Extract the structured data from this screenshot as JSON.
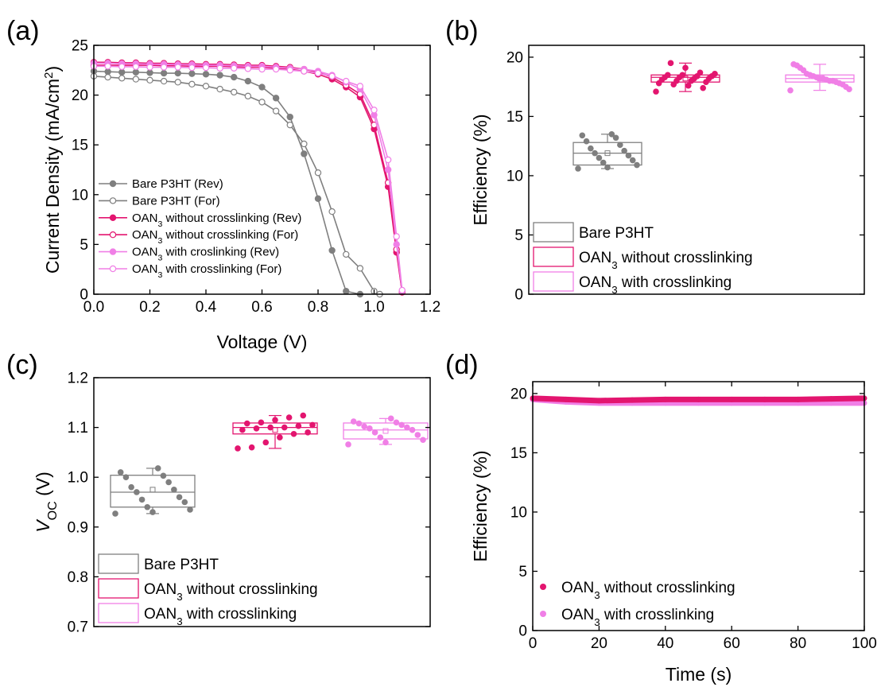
{
  "chart_data": [
    {
      "panel": "(a)",
      "type": "line",
      "xlabel": "Voltage (V)",
      "ylabel": "Current Density (mA/cm²)",
      "xlim": [
        0.0,
        1.2
      ],
      "ylim": [
        0,
        25
      ],
      "xticks": [
        "0.0",
        "0.2",
        "0.4",
        "0.6",
        "0.8",
        "1.0",
        "1.2"
      ],
      "yticks": [
        "0",
        "5",
        "10",
        "15",
        "20",
        "25"
      ],
      "grid": false,
      "legend_position": "bottom-left",
      "series": [
        {
          "name": "Bare P3HT (Rev)",
          "color": "#7f7f7f",
          "marker": "filled",
          "x": [
            0.0,
            0.05,
            0.1,
            0.15,
            0.2,
            0.25,
            0.3,
            0.35,
            0.4,
            0.45,
            0.5,
            0.55,
            0.6,
            0.65,
            0.7,
            0.75,
            0.8,
            0.85,
            0.9,
            0.95
          ],
          "y": [
            22.4,
            22.35,
            22.3,
            22.3,
            22.25,
            22.2,
            22.2,
            22.15,
            22.1,
            22.0,
            21.8,
            21.4,
            20.8,
            19.7,
            17.8,
            14.1,
            9.6,
            4.4,
            0.3,
            0.0
          ]
        },
        {
          "name": "Bare P3HT (For)",
          "color": "#7f7f7f",
          "marker": "open",
          "x": [
            0.0,
            0.05,
            0.1,
            0.15,
            0.2,
            0.25,
            0.3,
            0.35,
            0.4,
            0.45,
            0.5,
            0.55,
            0.6,
            0.65,
            0.7,
            0.75,
            0.8,
            0.85,
            0.9,
            0.95,
            1.0,
            1.02
          ],
          "y": [
            21.9,
            21.8,
            21.7,
            21.6,
            21.5,
            21.4,
            21.3,
            21.1,
            20.9,
            20.6,
            20.3,
            19.9,
            19.3,
            18.4,
            17.0,
            15.1,
            12.2,
            8.3,
            4.0,
            2.6,
            0.3,
            0.0
          ]
        },
        {
          "name": "OAN3 without crosslinking (Rev)",
          "color": "#e3156f",
          "marker": "filled",
          "x": [
            0.0,
            0.05,
            0.1,
            0.15,
            0.2,
            0.25,
            0.3,
            0.35,
            0.4,
            0.45,
            0.5,
            0.55,
            0.6,
            0.65,
            0.7,
            0.75,
            0.8,
            0.85,
            0.9,
            0.95,
            1.0,
            1.05,
            1.08,
            1.1
          ],
          "y": [
            23.0,
            23.0,
            23.0,
            23.0,
            23.0,
            22.95,
            22.95,
            22.9,
            22.9,
            22.9,
            22.85,
            22.8,
            22.8,
            22.7,
            22.6,
            22.4,
            22.1,
            21.6,
            20.8,
            19.8,
            16.6,
            10.8,
            4.2,
            0.2
          ]
        },
        {
          "name": "OAN3 without crosslinking (For)",
          "color": "#e3156f",
          "marker": "open",
          "x": [
            0.0,
            0.05,
            0.1,
            0.15,
            0.2,
            0.25,
            0.3,
            0.35,
            0.4,
            0.45,
            0.5,
            0.55,
            0.6,
            0.65,
            0.7,
            0.75,
            0.8,
            0.85,
            0.9,
            0.95,
            1.0,
            1.05,
            1.08,
            1.1
          ],
          "y": [
            23.3,
            23.3,
            23.25,
            23.25,
            23.2,
            23.2,
            23.15,
            23.15,
            23.1,
            23.1,
            23.05,
            23.0,
            23.0,
            22.9,
            22.8,
            22.6,
            22.3,
            21.8,
            21.0,
            20.1,
            17.0,
            11.2,
            4.5,
            0.2
          ]
        },
        {
          "name": "OAN3 with croslinking (Rev)",
          "color": "#f07fe6",
          "marker": "filled",
          "x": [
            0.0,
            0.05,
            0.1,
            0.15,
            0.2,
            0.25,
            0.3,
            0.35,
            0.4,
            0.45,
            0.5,
            0.55,
            0.6,
            0.65,
            0.7,
            0.75,
            0.8,
            0.85,
            0.9,
            0.95,
            1.0,
            1.05,
            1.08,
            1.1
          ],
          "y": [
            23.2,
            23.2,
            23.15,
            23.15,
            23.1,
            23.1,
            23.05,
            23.05,
            23.0,
            23.0,
            22.95,
            22.9,
            22.9,
            22.8,
            22.7,
            22.6,
            22.4,
            22.0,
            21.3,
            20.6,
            18.0,
            12.5,
            5.0,
            0.3
          ]
        },
        {
          "name": "OAN3 with crosslinking (For)",
          "color": "#f07fe6",
          "marker": "open",
          "x": [
            0.0,
            0.05,
            0.1,
            0.15,
            0.2,
            0.25,
            0.3,
            0.35,
            0.4,
            0.45,
            0.5,
            0.55,
            0.6,
            0.65,
            0.7,
            0.75,
            0.8,
            0.85,
            0.9,
            0.95,
            1.0,
            1.05,
            1.08,
            1.1
          ],
          "y": [
            22.9,
            22.9,
            22.85,
            22.85,
            22.8,
            22.8,
            22.8,
            22.75,
            22.75,
            22.7,
            22.7,
            22.65,
            22.6,
            22.6,
            22.5,
            22.4,
            22.2,
            21.9,
            21.4,
            20.9,
            18.5,
            13.5,
            5.8,
            0.4
          ]
        }
      ]
    },
    {
      "panel": "(b)",
      "type": "box",
      "ylabel": "Efficiency (%)",
      "ylim": [
        0,
        21
      ],
      "yticks": [
        "0",
        "5",
        "10",
        "15",
        "20"
      ],
      "grid": false,
      "legend_position": "bottom-left",
      "series": [
        {
          "name": "Bare P3HT",
          "color": "#7f7f7f",
          "box": [
            10.9,
            11.9,
            12.8
          ],
          "mean": 11.9,
          "whiskers": [
            10.6,
            13.5
          ],
          "points": [
            10.6,
            10.7,
            10.9,
            11.1,
            11.3,
            11.5,
            11.7,
            11.9,
            12.1,
            12.3,
            12.6,
            12.9,
            13.2,
            13.4,
            13.5
          ]
        },
        {
          "name": "OAN3 without crosslinking",
          "color": "#e3156f",
          "box": [
            17.9,
            18.3,
            18.5
          ],
          "mean": 18.2,
          "whiskers": [
            17.1,
            19.5
          ],
          "points": [
            17.1,
            17.4,
            17.6,
            17.7,
            17.8,
            17.9,
            18.0,
            18.0,
            18.1,
            18.2,
            18.2,
            18.3,
            18.3,
            18.4,
            18.4,
            18.5,
            18.5,
            18.6,
            18.7,
            19.1,
            19.5
          ]
        },
        {
          "name": "OAN3 with crosslinking",
          "color": "#f07fe6",
          "box": [
            17.9,
            18.2,
            18.5
          ],
          "mean": 18.2,
          "whiskers": [
            17.2,
            19.4
          ],
          "points": [
            17.2,
            17.3,
            17.5,
            17.7,
            17.8,
            17.9,
            18.0,
            18.0,
            18.1,
            18.2,
            18.2,
            18.3,
            18.4,
            18.5,
            18.6,
            18.9,
            19.1,
            19.3,
            19.4
          ]
        }
      ]
    },
    {
      "panel": "(c)",
      "type": "box",
      "ylabel": "VOC (V)",
      "ylim": [
        0.7,
        1.2
      ],
      "yticks": [
        "0.7",
        "0.8",
        "0.9",
        "1.0",
        "1.1",
        "1.2"
      ],
      "grid": false,
      "legend_position": "bottom-left",
      "series": [
        {
          "name": "Bare P3HT",
          "color": "#7f7f7f",
          "box": [
            0.94,
            0.97,
            1.004
          ],
          "mean": 0.975,
          "whiskers": [
            0.927,
            1.018
          ],
          "points": [
            0.927,
            0.93,
            0.935,
            0.94,
            0.95,
            0.955,
            0.96,
            0.97,
            0.975,
            0.98,
            0.99,
            1.0,
            1.003,
            1.01,
            1.018
          ]
        },
        {
          "name": "OAN3 without crosslinking",
          "color": "#e3156f",
          "box": [
            1.087,
            1.1,
            1.109
          ],
          "mean": 1.095,
          "whiskers": [
            1.058,
            1.124
          ],
          "points": [
            1.058,
            1.06,
            1.07,
            1.08,
            1.087,
            1.09,
            1.095,
            1.098,
            1.1,
            1.1,
            1.103,
            1.105,
            1.108,
            1.11,
            1.115,
            1.12,
            1.124
          ]
        },
        {
          "name": "OAN3 with crosslinking",
          "color": "#f07fe6",
          "box": [
            1.077,
            1.095,
            1.109
          ],
          "mean": 1.093,
          "whiskers": [
            1.066,
            1.118
          ],
          "points": [
            1.066,
            1.07,
            1.075,
            1.08,
            1.085,
            1.09,
            1.095,
            1.098,
            1.1,
            1.102,
            1.105,
            1.108,
            1.11,
            1.112,
            1.118
          ]
        }
      ]
    },
    {
      "panel": "(d)",
      "type": "scatter",
      "xlabel": "Time (s)",
      "ylabel": "Efficiency (%)",
      "xlim": [
        0,
        100
      ],
      "ylim": [
        0,
        21
      ],
      "xticks": [
        "0",
        "20",
        "40",
        "60",
        "80",
        "100"
      ],
      "yticks": [
        "0",
        "5",
        "10",
        "15",
        "20"
      ],
      "grid": false,
      "legend_position": "bottom-left",
      "series": [
        {
          "name": "OAN3 without crosslinking",
          "color": "#e3156f",
          "x": [
            0,
            10,
            20,
            30,
            40,
            50,
            60,
            70,
            80,
            90,
            100
          ],
          "y": [
            19.6,
            19.5,
            19.4,
            19.45,
            19.5,
            19.5,
            19.5,
            19.5,
            19.5,
            19.55,
            19.6
          ]
        },
        {
          "name": "OAN3 with crosslinking",
          "color": "#f07fe6",
          "x": [
            0,
            10,
            20,
            30,
            40,
            50,
            60,
            70,
            80,
            90,
            100
          ],
          "y": [
            19.5,
            19.3,
            19.2,
            19.2,
            19.2,
            19.2,
            19.2,
            19.2,
            19.2,
            19.2,
            19.2
          ]
        }
      ]
    }
  ]
}
